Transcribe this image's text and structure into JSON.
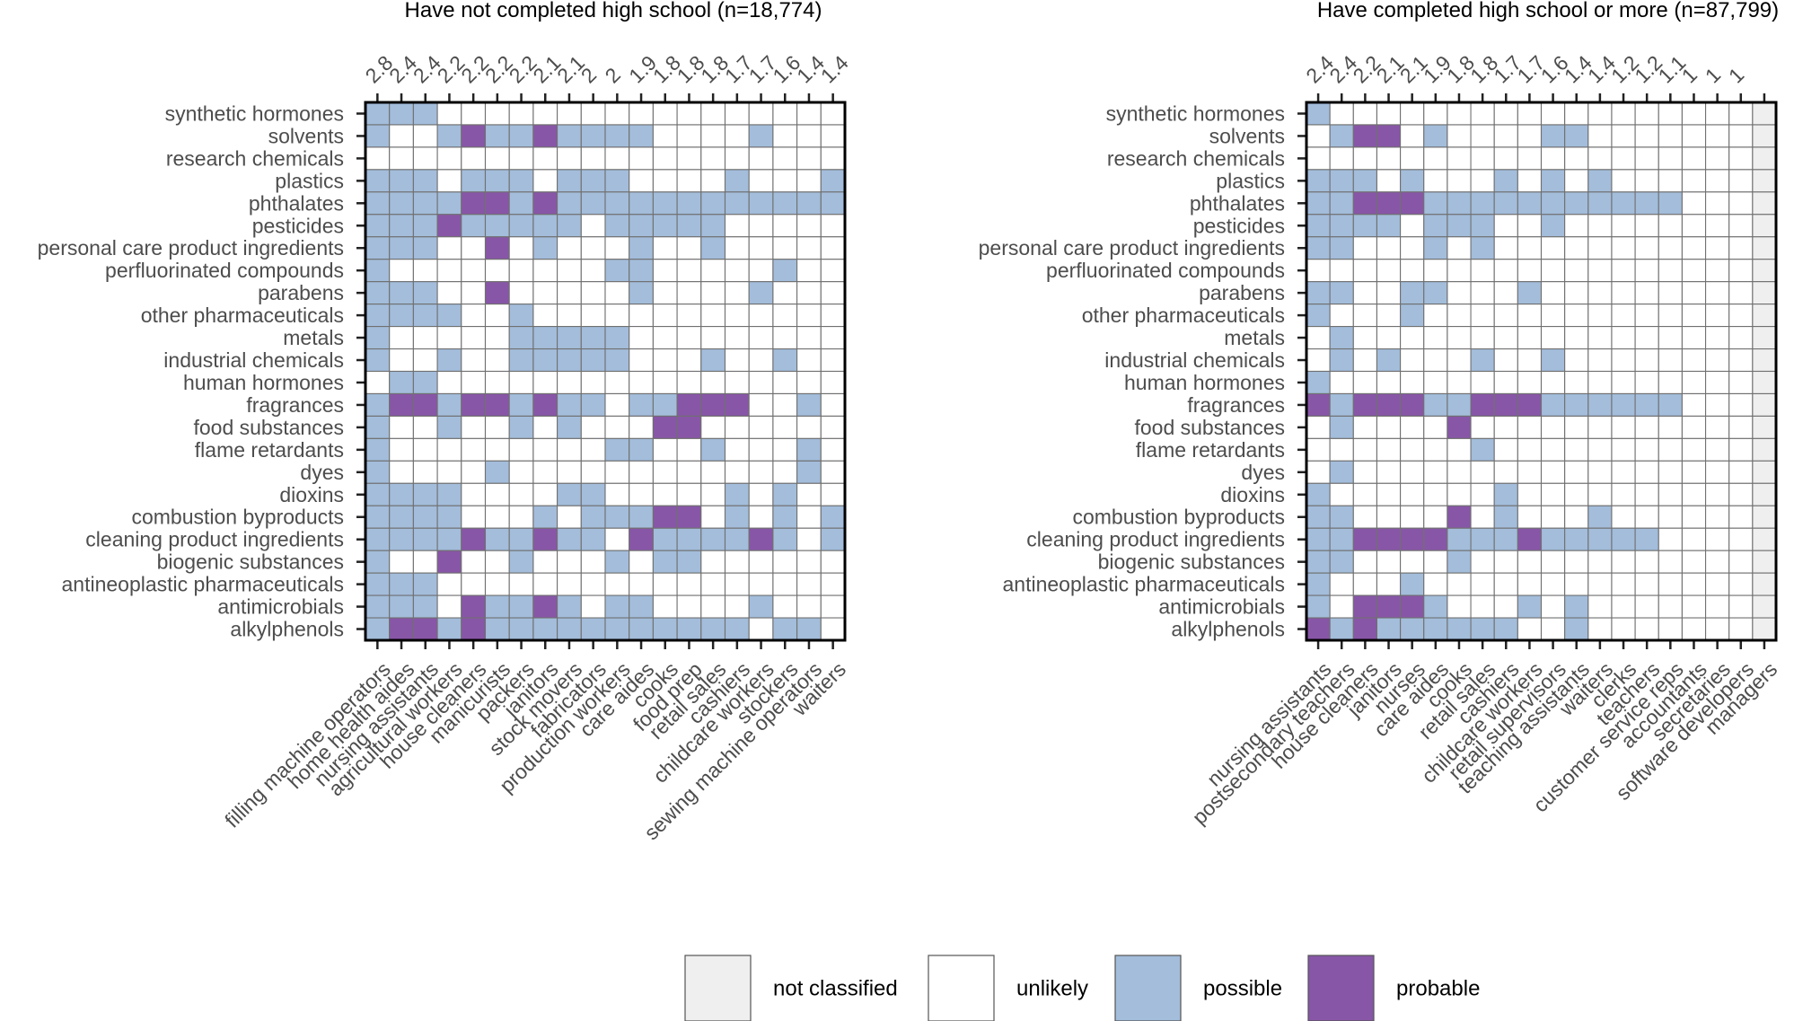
{
  "chart_data": [
    {
      "type": "heatmap",
      "title": "Have not completed high school (n=18,774)",
      "row_labels": [
        "synthetic hormones",
        "solvents",
        "research chemicals",
        "plastics",
        "phthalates",
        "pesticides",
        "personal care product ingredients",
        "perfluorinated compounds",
        "parabens",
        "other pharmaceuticals",
        "metals",
        "industrial chemicals",
        "human hormones",
        "fragrances",
        "food substances",
        "flame retardants",
        "dyes",
        "dioxins",
        "combustion byproducts",
        "cleaning product ingredients",
        "biogenic substances",
        "antineoplastic pharmaceuticals",
        "antimicrobials",
        "alkylphenols"
      ],
      "col_labels": [
        "filling machine operators",
        "home health aides",
        "nursing assistants",
        "agricultural workers",
        "house cleaners",
        "manicurists",
        "packers",
        "janitors",
        "stock movers",
        "fabricators",
        "production workers",
        "care aides",
        "cooks",
        "food prep",
        "retail sales",
        "cashiers",
        "childcare workers",
        "stockers",
        "sewing machine operators",
        "waiters"
      ],
      "top_values": [
        "2.8",
        "2.4",
        "2.4",
        "2.2",
        "2.2",
        "2.2",
        "2.2",
        "2.1",
        "2.1",
        "2",
        "2",
        "1.9",
        "1.8",
        "1.8",
        "1.8",
        "1.7",
        "1.7",
        "1.6",
        "1.4",
        "1.4"
      ],
      "cells": [
        "PPP.................",
        "P..PQPPQPPPP....P...",
        "....................",
        "PPP.PPP.PPP....P...P",
        "PPPPQQPQPPPPPPPPPPPP",
        "PPPQPPPPP.PPPPP.....",
        "PPP..Q.P...P..P.....",
        "P.........PP.....P..",
        "PPP..Q.....P....P...",
        "PPPP..P.............",
        "P.....PPPPP.........",
        "P..P..PPPPP...P..P..",
        ".PP.................",
        "PQQPQQPQPP.PPQQQ..P.",
        "P..P..P.P...QQ......",
        "P.........PP..P...P.",
        "P....P............P.",
        "PPPP....PP.....P.P..",
        "PPPP...P.PPPQQ.P.P.P",
        "PPPPQPPQPP.QPPPPQP.P",
        "P..Q..P...P.PP......",
        "PPP.................",
        "PPP.QPPQP.PP....P...",
        "PQQPQPPPPPPPPPPP.PP."
      ]
    },
    {
      "type": "heatmap",
      "title": "Have completed high school or more (n=87,799)",
      "row_labels": [
        "synthetic hormones",
        "solvents",
        "research chemicals",
        "plastics",
        "phthalates",
        "pesticides",
        "personal care product ingredients",
        "perfluorinated compounds",
        "parabens",
        "other pharmaceuticals",
        "metals",
        "industrial chemicals",
        "human hormones",
        "fragrances",
        "food substances",
        "flame retardants",
        "dyes",
        "dioxins",
        "combustion byproducts",
        "cleaning product ingredients",
        "biogenic substances",
        "antineoplastic pharmaceuticals",
        "antimicrobials",
        "alkylphenols"
      ],
      "col_labels": [
        "nursing assistants",
        "postsecondary teachers",
        "house cleaners",
        "janitors",
        "nurses",
        "care aides",
        "cooks",
        "retail sales",
        "cashiers",
        "childcare workers",
        "retail supervisors",
        "teaching assistants",
        "waiters",
        "clerks",
        "teachers",
        "customer service reps",
        "accountants",
        "secretaries",
        "software developers",
        "managers"
      ],
      "top_values": [
        "2.4",
        "2.4",
        "2.2",
        "2.1",
        "2.1",
        "1.9",
        "1.8",
        "1.8",
        "1.7",
        "1.7",
        "1.6",
        "1.4",
        "1.4",
        "1.2",
        "1.2",
        "1.1",
        "1",
        "1",
        "1",
        ""
      ],
      "cells": [
        "P..................N",
        ".PQQ.P....PP.......N",
        "...................N",
        "PPP.P...P.P.P......N",
        "PPQQQPPPPPPPPPPP...N",
        "PPPP.PPP..P........N",
        "PP...P.P...........N",
        "...................N",
        "PP..PP...P.........N",
        "P...P..............N",
        ".P.................N",
        ".P.P...P..P........N",
        "P..................N",
        "QPQQQPPQQQPPPPPP...N",
        ".P....Q............N",
        ".......P...........N",
        ".P.................N",
        "P.......P..........N",
        "PP....Q.P...P......N",
        "PPQQQQPPPQPPPPP....N",
        "PP....P............N",
        "P...P..............N",
        "P.QQQP...P.P.......N",
        "QPQPPPPPP..P.......N"
      ]
    }
  ],
  "legend": {
    "items": [
      {
        "key": "N",
        "label": "not classified",
        "color": "#efefef"
      },
      {
        "key": ".",
        "label": "unlikely",
        "color": "#ffffff"
      },
      {
        "key": "P",
        "label": "possible",
        "color": "#a3bddb"
      },
      {
        "key": "Q",
        "label": "probable",
        "color": "#8856a7"
      }
    ]
  },
  "colors": {
    "grid": "#707070",
    "frame": "#000000",
    "text": "#4d4d4d"
  }
}
